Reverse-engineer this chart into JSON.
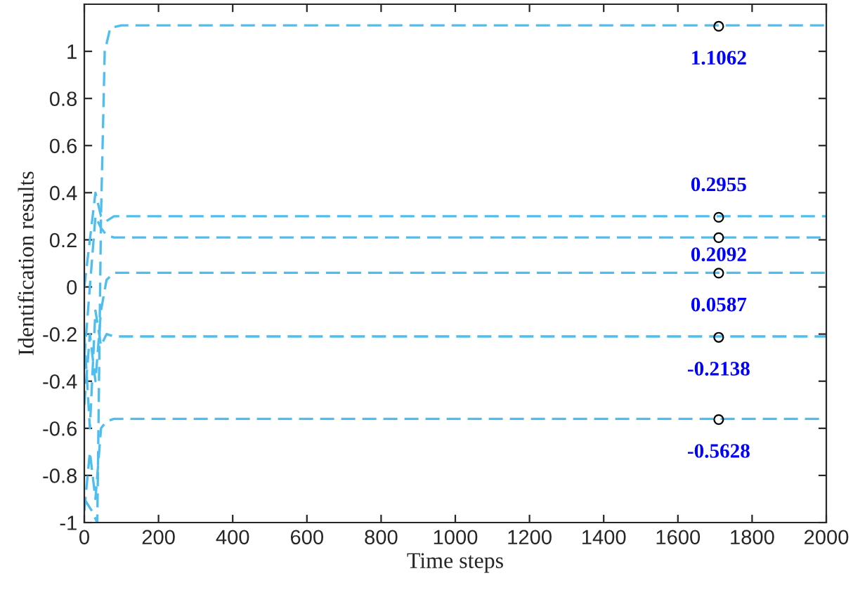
{
  "chart_data": {
    "type": "line",
    "xlabel": "Time steps",
    "ylabel": "Identification results",
    "x": [
      0,
      15,
      30,
      45,
      60,
      80,
      2000
    ],
    "series": [
      {
        "color": "#4dbeee",
        "x": [
          0,
          20,
          35,
          45,
          55,
          70,
          100,
          2000
        ],
        "values": [
          -0.9,
          -0.95,
          -1.0,
          0.3,
          1.0,
          1.1,
          1.11,
          1.11
        ]
      },
      {
        "color": "#4dbeee",
        "values": [
          0.0,
          0.2,
          0.4,
          0.3,
          0.28,
          0.3,
          0.3
        ]
      },
      {
        "color": "#4dbeee",
        "values": [
          -0.3,
          0.0,
          0.3,
          0.25,
          0.22,
          0.21,
          0.21
        ]
      },
      {
        "color": "#4dbeee",
        "values": [
          -0.5,
          -0.2,
          -0.4,
          -0.1,
          0.03,
          0.06,
          0.06
        ]
      },
      {
        "color": "#4dbeee",
        "values": [
          -0.2,
          -0.6,
          -0.1,
          -0.25,
          -0.2,
          -0.21,
          -0.21
        ]
      },
      {
        "color": "#4dbeee",
        "values": [
          -0.95,
          -0.7,
          -0.9,
          -0.6,
          -0.57,
          -0.56,
          -0.56
        ]
      },
      {
        "type": "scatter",
        "marker": "circle",
        "color": "#000000",
        "x": [
          1710,
          1710,
          1710,
          1710,
          1710,
          1710
        ],
        "values": [
          1.1062,
          0.2955,
          0.2092,
          0.0587,
          -0.2138,
          -0.5628
        ],
        "data_labels": true
      }
    ],
    "line_style": "dashed",
    "marker": "none",
    "xlim": [
      0,
      2000
    ],
    "xticks": [
      0,
      200,
      400,
      600,
      800,
      1000,
      1200,
      1400,
      1600,
      1800,
      2000
    ],
    "ylim": [
      -1,
      1.2
    ],
    "yticks": [
      {
        "value": -1,
        "label": "-1"
      },
      -0.8,
      -0.6,
      -0.4,
      -0.2,
      {
        "value": 0,
        "label": "0"
      },
      0.2,
      0.4,
      0.6,
      0.8,
      {
        "value": 1,
        "label": "1"
      }
    ],
    "grid": false,
    "legend": false
  }
}
